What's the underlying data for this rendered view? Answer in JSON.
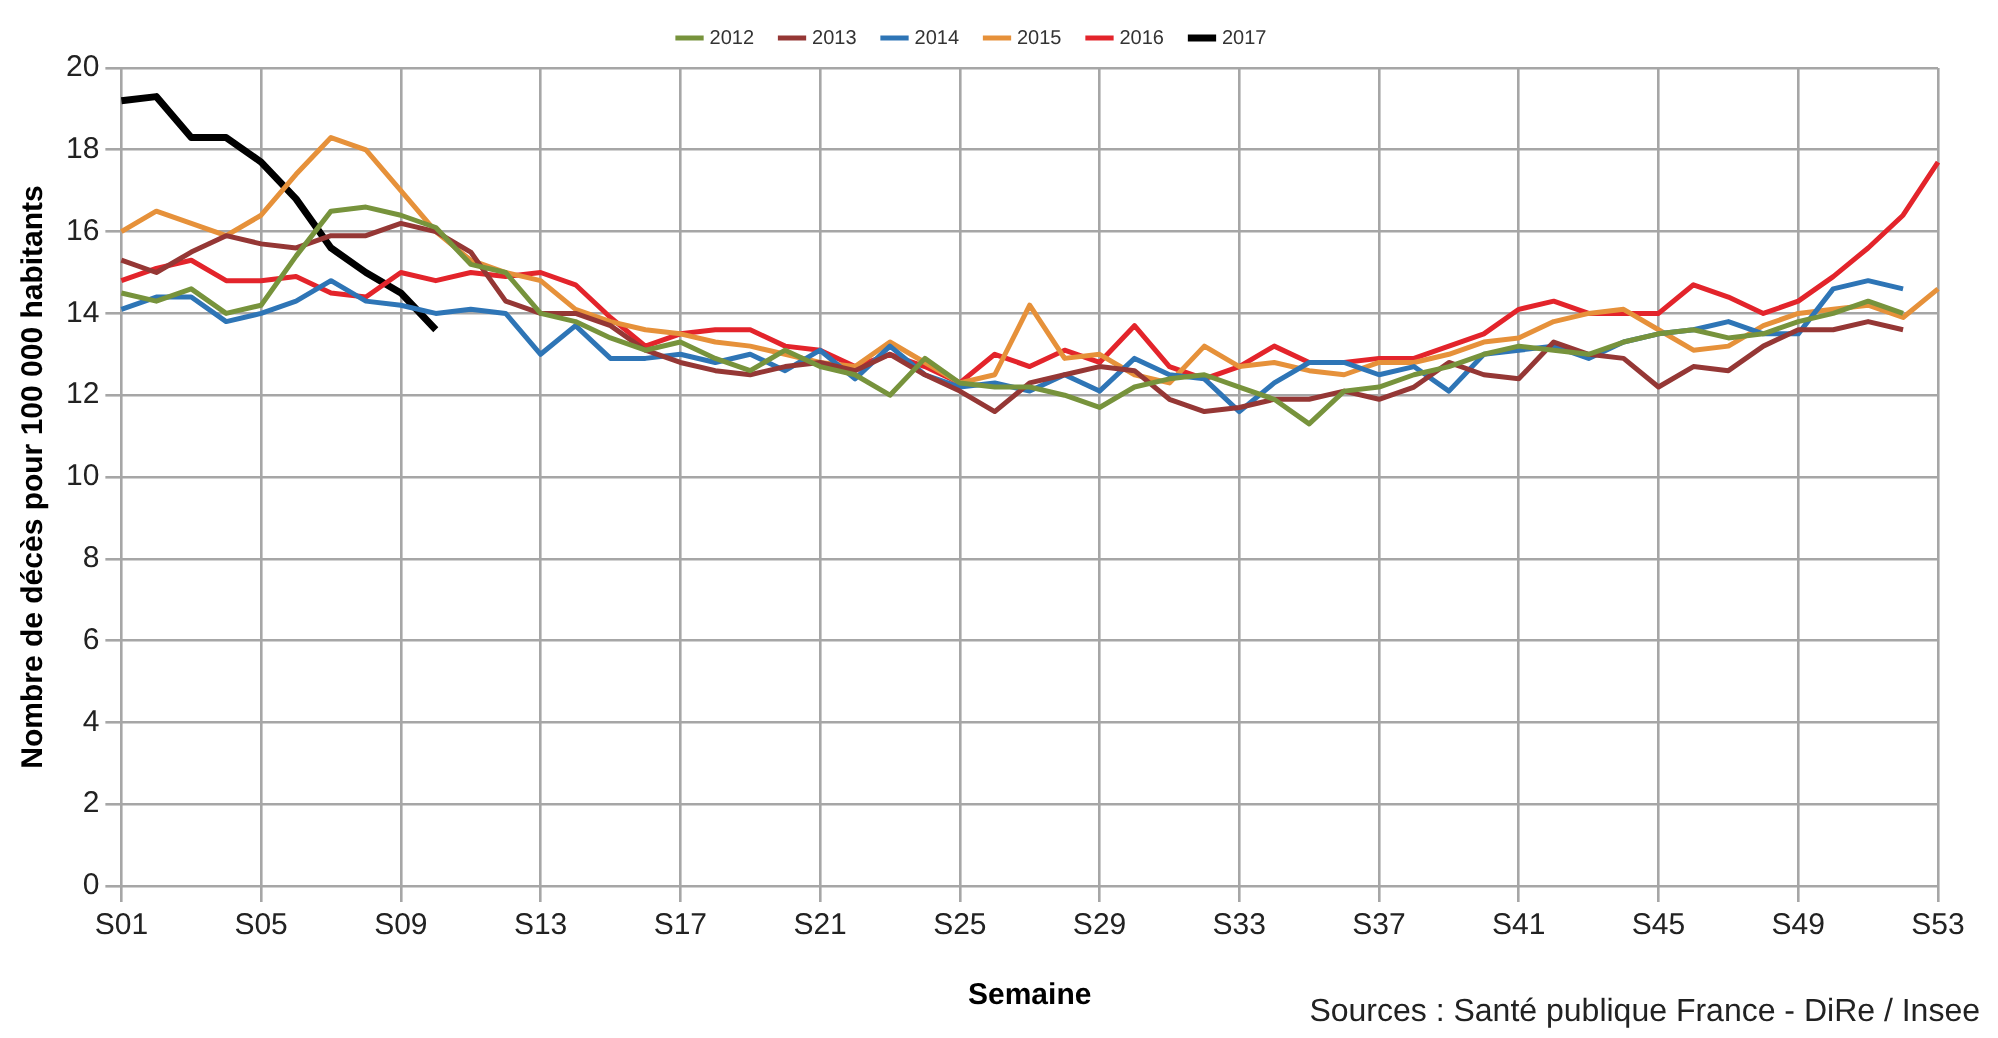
{
  "chart_data": {
    "type": "line",
    "xlabel": "Semaine",
    "ylabel": "Nombre de décès pour 100 000 habitants",
    "annotations": [
      "Sources : Santé publique France - DiRe / Insee"
    ],
    "categories": [
      "S01",
      null,
      null,
      null,
      "S05",
      null,
      null,
      null,
      "S09",
      null,
      null,
      null,
      "S13",
      null,
      null,
      null,
      "S17",
      null,
      null,
      null,
      "S21",
      null,
      null,
      null,
      "S25",
      null,
      null,
      null,
      "S29",
      null,
      null,
      null,
      "S33",
      null,
      null,
      null,
      "S37",
      null,
      null,
      null,
      "S41",
      null,
      null,
      null,
      "S45",
      null,
      null,
      null,
      "S49",
      null,
      null,
      null,
      "S53"
    ],
    "series": [
      {
        "name": "2012",
        "color": "#77933c",
        "values": [
          14.5,
          14.3,
          14.6,
          14.0,
          14.2,
          15.4,
          16.5,
          16.6,
          16.4,
          16.1,
          15.2,
          15.0,
          14.0,
          13.8,
          13.4,
          13.1,
          13.3,
          12.9,
          12.6,
          13.1,
          12.7,
          12.5,
          12.0,
          12.9,
          12.3,
          12.2,
          12.2,
          12.0,
          11.7,
          12.2,
          12.4,
          12.5,
          12.2,
          11.9,
          11.3,
          12.1,
          12.2,
          12.5,
          12.7,
          13.0,
          13.2,
          13.1,
          13.0,
          13.3,
          13.5,
          13.6,
          13.4,
          13.5,
          13.8,
          14.0,
          14.3,
          14.0,
          null
        ]
      },
      {
        "name": "2013",
        "color": "#953735",
        "values": [
          15.3,
          15.0,
          15.5,
          15.9,
          15.7,
          15.6,
          15.9,
          15.9,
          16.2,
          16.0,
          15.5,
          14.3,
          14.0,
          14.0,
          13.7,
          13.1,
          12.8,
          12.6,
          12.5,
          12.7,
          12.8,
          12.6,
          13.0,
          12.5,
          12.1,
          11.6,
          12.3,
          12.5,
          12.7,
          12.6,
          11.9,
          11.6,
          11.7,
          11.9,
          11.9,
          12.1,
          11.9,
          12.2,
          12.8,
          12.5,
          12.4,
          13.3,
          13.0,
          12.9,
          12.2,
          12.7,
          12.6,
          13.2,
          13.6,
          13.6,
          13.8,
          13.6,
          null
        ]
      },
      {
        "name": "2014",
        "color": "#2e75b6",
        "values": [
          14.1,
          14.4,
          14.4,
          13.8,
          14.0,
          14.3,
          14.8,
          14.3,
          14.2,
          14.0,
          14.1,
          14.0,
          13.0,
          13.7,
          12.9,
          12.9,
          13.0,
          12.8,
          13.0,
          12.6,
          13.1,
          12.4,
          13.2,
          12.5,
          12.2,
          12.3,
          12.1,
          12.5,
          12.1,
          12.9,
          12.5,
          12.4,
          11.6,
          12.3,
          12.8,
          12.8,
          12.5,
          12.7,
          12.1,
          13.0,
          13.1,
          13.2,
          12.9,
          13.3,
          13.5,
          13.6,
          13.8,
          13.5,
          13.5,
          14.6,
          14.8,
          14.6,
          null
        ]
      },
      {
        "name": "2015",
        "color": "#e6913a",
        "values": [
          16.0,
          16.5,
          16.2,
          15.9,
          16.4,
          17.4,
          18.3,
          18.0,
          17.0,
          16.0,
          15.3,
          15.0,
          14.8,
          14.1,
          13.8,
          13.6,
          13.5,
          13.3,
          13.2,
          13.0,
          12.8,
          12.7,
          13.3,
          12.8,
          12.3,
          12.5,
          14.2,
          12.9,
          13.0,
          12.5,
          12.3,
          13.2,
          12.7,
          12.8,
          12.6,
          12.5,
          12.8,
          12.8,
          13.0,
          13.3,
          13.4,
          13.8,
          14.0,
          14.1,
          13.6,
          13.1,
          13.2,
          13.7,
          14.0,
          14.1,
          14.2,
          13.9,
          14.6
        ]
      },
      {
        "name": "2016",
        "color": "#e3242b",
        "values": [
          14.8,
          15.1,
          15.3,
          14.8,
          14.8,
          14.9,
          14.5,
          14.4,
          15.0,
          14.8,
          15.0,
          14.9,
          15.0,
          14.7,
          13.9,
          13.2,
          13.5,
          13.6,
          13.6,
          13.2,
          13.1,
          12.7,
          13.0,
          12.7,
          12.3,
          13.0,
          12.7,
          13.1,
          12.8,
          13.7,
          12.7,
          12.4,
          12.7,
          13.2,
          12.8,
          12.8,
          12.9,
          12.9,
          13.2,
          13.5,
          14.1,
          14.3,
          14.0,
          14.0,
          14.0,
          14.7,
          14.4,
          14.0,
          14.3,
          14.9,
          15.6,
          16.4,
          17.7
        ]
      },
      {
        "name": "2017",
        "color": "#000000",
        "values": [
          19.2,
          19.3,
          18.3,
          18.3,
          17.7,
          16.8,
          15.6,
          15.0,
          14.5,
          13.6,
          null,
          null,
          null,
          null,
          null,
          null,
          null,
          null,
          null,
          null,
          null,
          null,
          null,
          null,
          null,
          null,
          null,
          null,
          null,
          null,
          null,
          null,
          null,
          null,
          null,
          null,
          null,
          null,
          null,
          null,
          null,
          null,
          null,
          null,
          null,
          null,
          null,
          null,
          null,
          null,
          null,
          null,
          null
        ]
      }
    ],
    "ylim": [
      0,
      20
    ],
    "yticks": [
      0,
      2,
      4,
      6,
      8,
      10,
      12,
      14,
      16,
      18,
      20
    ],
    "grid": true,
    "legend": "top",
    "marker": "none",
    "line_style": "solid"
  }
}
